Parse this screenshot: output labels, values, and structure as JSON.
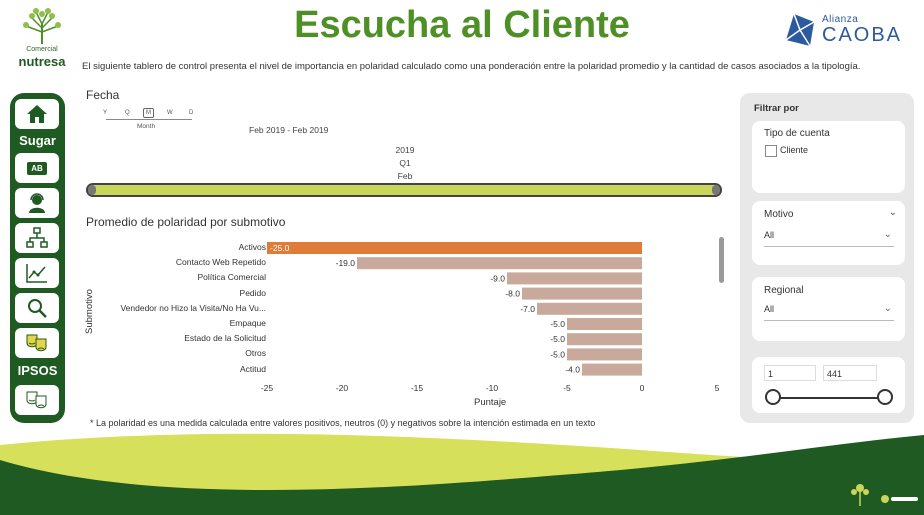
{
  "header": {
    "title": "Escucha al Cliente",
    "subtitle": "El siguiente tablero de control presenta el nivel de importancia en polaridad calculado como una ponderación entre la polaridad promedio y la cantidad de casos asociados a la tipología.",
    "left_logo": {
      "line1": "Comercial",
      "line2": "nutresa"
    },
    "right_logo": {
      "line1": "Alianza",
      "line2": "CAOBA"
    }
  },
  "nav": {
    "items": [
      {
        "icon": "home-icon"
      },
      {
        "label": "Sugar"
      },
      {
        "icon": "ab-icon",
        "text": "AB"
      },
      {
        "icon": "user-support-icon"
      },
      {
        "icon": "hierarchy-icon"
      },
      {
        "icon": "line-chart-icon"
      },
      {
        "icon": "search-icon"
      },
      {
        "icon": "theater-masks-icon"
      },
      {
        "label": "IPSOS"
      },
      {
        "icon": "theater-masks-icon"
      }
    ]
  },
  "date_slicer": {
    "title": "Fecha",
    "scale_letters": [
      "Y",
      "Q",
      "M",
      "W",
      "D"
    ],
    "scale_selected": "Month",
    "range_text": "Feb 2019 - Feb 2019",
    "year": "2019",
    "quarter": "Q1",
    "month": "Feb"
  },
  "chart_title": "Promedio de polaridad por submotivo",
  "chart_data": {
    "type": "bar",
    "orientation": "horizontal",
    "title": "Promedio de polaridad por submotivo",
    "xlabel": "Puntaje",
    "ylabel": "Submotivo",
    "xlim": [
      -25,
      5
    ],
    "xticks": [
      "-25",
      "-20",
      "-15",
      "-10",
      "-5",
      "0",
      "5"
    ],
    "categories": [
      "Activos",
      "Contacto Web Repetido",
      "Política Comercial",
      "Pedido",
      "Vendedor no Hizo la Visita/No Ha Vu...",
      "Empaque",
      "Estado de la Solicitud",
      "Otros",
      "Actitud"
    ],
    "values": [
      -25.0,
      -19.0,
      -9.0,
      -8.0,
      -7.0,
      -5.0,
      -5.0,
      -5.0,
      -4.0
    ],
    "value_labels": [
      "-25.0",
      "-19.0",
      "-9.0",
      "-8.0",
      "-7.0",
      "-5.0",
      "-5.0",
      "-5.0",
      "-4.0"
    ],
    "colors": {
      "highlight": "#e07b39",
      "default": "#c8a99b"
    }
  },
  "footnote": "* La polaridad es una medida calculada entre valores positivos, neutros (0) y negativos sobre la intención estimada en un texto",
  "filters": {
    "title": "Filtrar por",
    "account_type": {
      "label": "Tipo de cuenta",
      "option": "Cliente"
    },
    "motivo": {
      "label": "Motivo",
      "value": "All"
    },
    "regional": {
      "label": "Regional",
      "value": "All"
    },
    "range": {
      "min": "1",
      "max": "441"
    }
  },
  "colors": {
    "brand_green": "#4e8f26",
    "dark_green": "#1f5a22",
    "lime": "#c9d65a"
  }
}
